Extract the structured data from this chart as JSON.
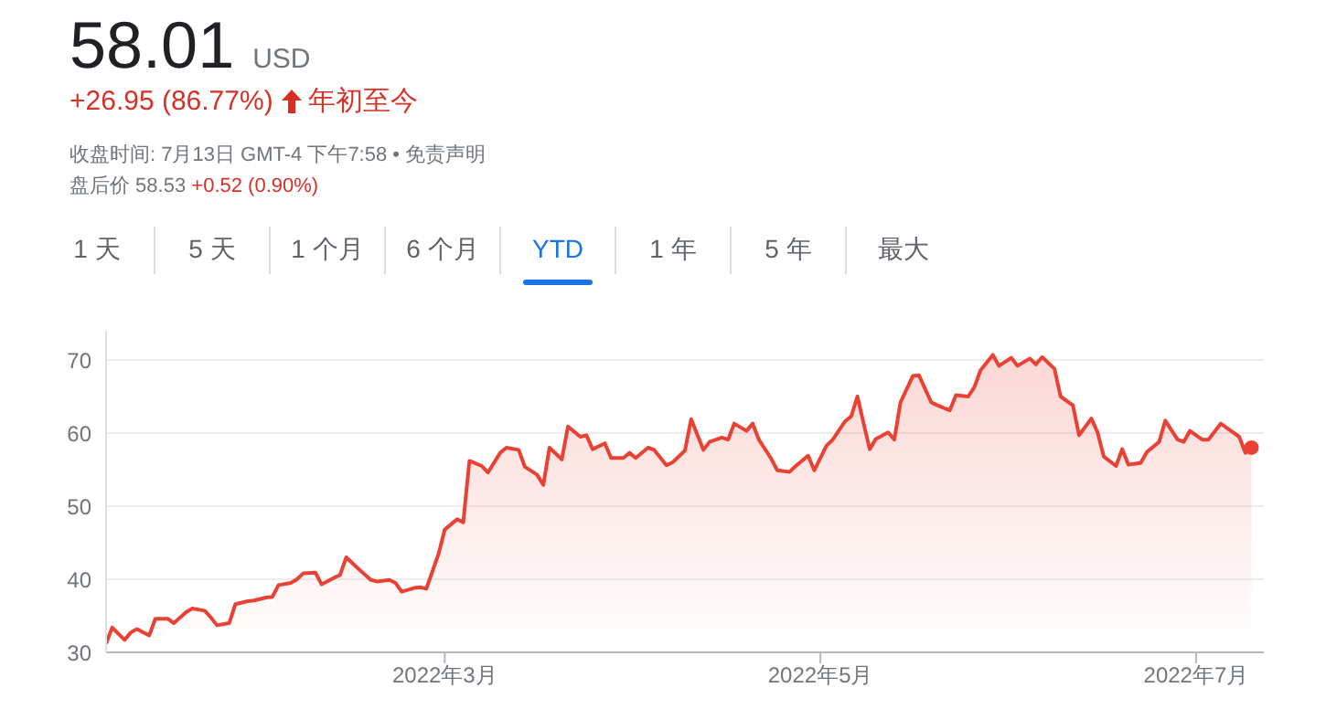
{
  "chart_data": {
    "type": "area",
    "title": "58.01",
    "subtitle": "USD",
    "annotations": [
      "+26.95 (86.77%)",
      "年初至今",
      "收盘时间: 7月13日 GMT-4 下午7:58 • 免责声明",
      "盘后价 58.53",
      "+0.52 (0.90%)",
      "1 天",
      "5 天",
      "1 个月",
      "6 个月",
      "YTD",
      "1 年",
      "5 年",
      "最大"
    ],
    "x": [
      "2022-01-05",
      "2022-01-06",
      "2022-01-08",
      "2022-01-09",
      "2022-01-10",
      "2022-01-12",
      "2022-01-13",
      "2022-01-15",
      "2022-01-16",
      "2022-01-18",
      "2022-01-19",
      "2022-01-21",
      "2022-01-22",
      "2022-01-23",
      "2022-01-25",
      "2022-01-26",
      "2022-01-28",
      "2022-01-29",
      "2022-01-31",
      "2022-02-01",
      "2022-02-02",
      "2022-02-04",
      "2022-02-05",
      "2022-02-06",
      "2022-02-08",
      "2022-02-09",
      "2022-02-11",
      "2022-02-12",
      "2022-02-13",
      "2022-02-15",
      "2022-02-17",
      "2022-02-18",
      "2022-02-20",
      "2022-02-21",
      "2022-02-22",
      "2022-02-24",
      "2022-02-25",
      "2022-02-26",
      "2022-02-28",
      "2022-03-01",
      "2022-03-03",
      "2022-03-04",
      "2022-03-05",
      "2022-03-07",
      "2022-03-08",
      "2022-03-10",
      "2022-03-11",
      "2022-03-13",
      "2022-03-14",
      "2022-03-16",
      "2022-03-17",
      "2022-03-18",
      "2022-03-20",
      "2022-03-21",
      "2022-03-23",
      "2022-03-24",
      "2022-03-25",
      "2022-03-27",
      "2022-03-28",
      "2022-03-30",
      "2022-03-31",
      "2022-04-01",
      "2022-04-03",
      "2022-04-04",
      "2022-04-06",
      "2022-04-07",
      "2022-04-09",
      "2022-04-10",
      "2022-04-12",
      "2022-04-13",
      "2022-04-15",
      "2022-04-16",
      "2022-04-17",
      "2022-04-19",
      "2022-04-20",
      "2022-04-21",
      "2022-04-23",
      "2022-04-24",
      "2022-04-26",
      "2022-04-27",
      "2022-04-29",
      "2022-04-30",
      "2022-05-02",
      "2022-05-03",
      "2022-05-05",
      "2022-05-06",
      "2022-05-07",
      "2022-05-09",
      "2022-05-10",
      "2022-05-12",
      "2022-05-13",
      "2022-05-14",
      "2022-05-16",
      "2022-05-17",
      "2022-05-19",
      "2022-05-20",
      "2022-05-22",
      "2022-05-23",
      "2022-05-25",
      "2022-05-26",
      "2022-05-27",
      "2022-05-29",
      "2022-05-30",
      "2022-06-01",
      "2022-06-02",
      "2022-06-04",
      "2022-06-05",
      "2022-06-06",
      "2022-06-08",
      "2022-06-09",
      "2022-06-11",
      "2022-06-12",
      "2022-06-14",
      "2022-06-15",
      "2022-06-16",
      "2022-06-18",
      "2022-06-19",
      "2022-06-20",
      "2022-06-22",
      "2022-06-23",
      "2022-06-25",
      "2022-06-26",
      "2022-06-28",
      "2022-06-29",
      "2022-06-30",
      "2022-07-02",
      "2022-07-03",
      "2022-07-05",
      "2022-07-06",
      "2022-07-08",
      "2022-07-09",
      "2022-07-10"
    ],
    "values": [
      31.2,
      33.4,
      31.7,
      32.7,
      33.2,
      32.3,
      34.6,
      34.6,
      34.0,
      35.5,
      36.0,
      35.7,
      34.8,
      33.7,
      34.0,
      36.6,
      37.0,
      37.1,
      37.5,
      37.6,
      39.2,
      39.5,
      40.0,
      40.8,
      40.9,
      39.3,
      40.2,
      40.6,
      43.0,
      41.4,
      39.9,
      39.7,
      39.9,
      39.5,
      38.3,
      38.8,
      38.9,
      38.7,
      43.5,
      46.8,
      48.2,
      47.8,
      56.2,
      55.5,
      54.6,
      57.3,
      58.0,
      57.7,
      55.4,
      54.3,
      52.9,
      58.0,
      56.4,
      60.9,
      59.5,
      59.7,
      57.8,
      58.6,
      56.6,
      56.6,
      57.3,
      56.6,
      58.0,
      57.7,
      55.6,
      56.0,
      57.6,
      61.9,
      57.7,
      58.8,
      59.4,
      59.1,
      61.3,
      60.3,
      61.3,
      59.1,
      56.5,
      54.9,
      54.7,
      55.5,
      56.9,
      54.9,
      58.3,
      59.1,
      61.6,
      62.3,
      65.0,
      57.8,
      59.2,
      60.1,
      59.1,
      64.2,
      67.8,
      67.9,
      64.2,
      63.8,
      63.1,
      65.2,
      65.0,
      66.3,
      68.6,
      70.7,
      69.2,
      70.3,
      69.2,
      70.2,
      69.4,
      70.4,
      68.8,
      65.0,
      63.8,
      59.7,
      62.0,
      60.1,
      56.8,
      55.5,
      57.8,
      55.7,
      55.9,
      57.4,
      58.8,
      61.7,
      59.1,
      58.8,
      60.3,
      59.1,
      59.1,
      61.3,
      60.7,
      59.5,
      57.3,
      58.01
    ],
    "color": "#e94235",
    "xlim": [
      "2022-01-05",
      "2022-07-12"
    ],
    "xticks": [
      {
        "value": "2022-03-01",
        "label": "2022年3月"
      },
      {
        "value": "2022-05-01",
        "label": "2022年5月"
      },
      {
        "value": "2022-07-01",
        "label": "2022年7月"
      }
    ],
    "ylim": [
      30,
      74
    ],
    "yticks": [
      30,
      40,
      50,
      60,
      70
    ],
    "grid": "y"
  }
}
